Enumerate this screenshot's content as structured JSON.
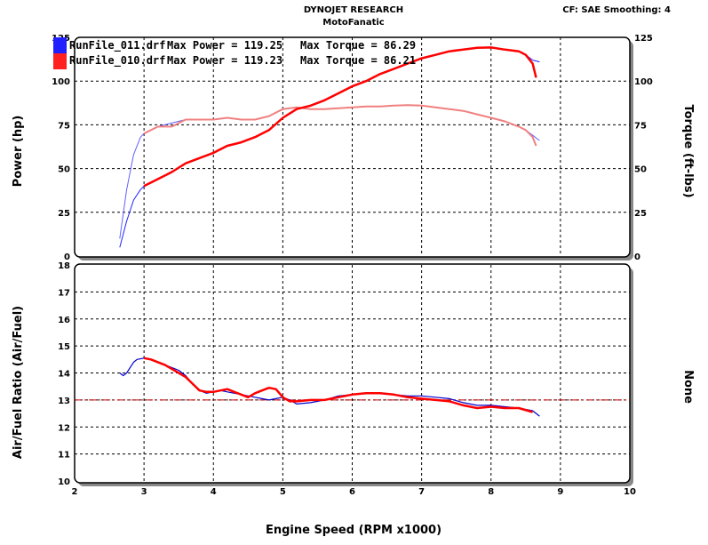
{
  "header": {
    "company": "DYNOJET RESEARCH",
    "shop": "MotoFanatic",
    "settings": "CF: SAE  Smoothing: 4"
  },
  "legend": [
    {
      "file": "RunFile_011.drf",
      "power_text": "Max Power = 119.25",
      "torque_text": "Max Torque = 86.29",
      "color": "#0000ff"
    },
    {
      "file": "RunFile_010.drf",
      "power_text": "Max Power = 119.23",
      "torque_text": "Max Torque = 86.21",
      "color": "#ff0000"
    }
  ],
  "chart_data": [
    {
      "type": "line",
      "name": "power-torque",
      "ylabel": "Power (hp)",
      "y2label": "Torque (ft-lbs)",
      "xlim": [
        2,
        10
      ],
      "ylim": [
        0,
        125
      ],
      "y2lim": [
        0,
        125
      ],
      "yticks": [
        0,
        25,
        50,
        75,
        100,
        125
      ],
      "y2ticks": [
        0,
        25,
        50,
        75,
        100,
        125
      ],
      "grid": true,
      "legend_position": "top-left",
      "series": [
        {
          "name": "RunFile_011.drf Power",
          "color": "#2020ff",
          "axis": "left",
          "x": [
            2.65,
            2.75,
            2.85,
            2.95,
            3.0,
            3.2,
            3.4,
            3.6,
            3.8,
            4.0,
            4.2,
            4.4,
            4.6,
            4.8,
            5.0,
            5.2,
            5.4,
            5.6,
            5.8,
            6.0,
            6.2,
            6.4,
            6.6,
            6.8,
            7.0,
            7.2,
            7.4,
            7.6,
            7.8,
            8.0,
            8.2,
            8.4,
            8.5,
            8.6,
            8.7
          ],
          "y": [
            5,
            20,
            32,
            38,
            40,
            44,
            48,
            53,
            56,
            59,
            63,
            65,
            68,
            72,
            79,
            84,
            86,
            89,
            93,
            97,
            100,
            104,
            107,
            110,
            113,
            115,
            117,
            118,
            119,
            119.25,
            118,
            117,
            115,
            112,
            111
          ]
        },
        {
          "name": "RunFile_010.drf Power",
          "color": "#ff0000",
          "axis": "left",
          "x": [
            3.0,
            3.2,
            3.4,
            3.6,
            3.8,
            4.0,
            4.2,
            4.4,
            4.6,
            4.8,
            5.0,
            5.2,
            5.4,
            5.6,
            5.8,
            6.0,
            6.2,
            6.4,
            6.6,
            6.8,
            7.0,
            7.2,
            7.4,
            7.6,
            7.8,
            8.0,
            8.2,
            8.4,
            8.5,
            8.6,
            8.65
          ],
          "y": [
            40,
            44,
            48,
            53,
            56,
            59,
            63,
            65,
            68,
            72,
            79,
            84,
            86,
            89,
            93,
            97,
            100,
            104,
            107,
            110,
            113,
            115,
            117,
            118,
            119,
            119.23,
            118,
            117,
            115,
            110,
            102
          ]
        },
        {
          "name": "RunFile_011.drf Torque",
          "color": "#6060ff",
          "axis": "right",
          "x": [
            2.65,
            2.75,
            2.85,
            2.95,
            3.0,
            3.2,
            3.4,
            3.6,
            3.8,
            4.0,
            4.2,
            4.4,
            4.6,
            4.8,
            5.0,
            5.2,
            5.4,
            5.6,
            5.8,
            6.0,
            6.2,
            6.4,
            6.6,
            6.8,
            7.0,
            7.2,
            7.4,
            7.6,
            7.8,
            8.0,
            8.2,
            8.4,
            8.5,
            8.6,
            8.7
          ],
          "y": [
            10,
            38,
            58,
            68,
            70,
            74,
            76,
            78,
            78,
            78,
            79,
            78,
            78,
            80,
            84,
            85,
            84,
            84,
            84.5,
            85,
            85.5,
            85.5,
            86,
            86.29,
            86,
            85,
            84,
            83,
            81,
            79,
            77,
            74,
            72,
            69,
            66
          ]
        },
        {
          "name": "RunFile_010.drf Torque",
          "color": "#f08080",
          "axis": "right",
          "x": [
            3.0,
            3.2,
            3.4,
            3.6,
            3.8,
            4.0,
            4.2,
            4.4,
            4.6,
            4.8,
            5.0,
            5.2,
            5.4,
            5.6,
            5.8,
            6.0,
            6.2,
            6.4,
            6.6,
            6.8,
            7.0,
            7.2,
            7.4,
            7.6,
            7.8,
            8.0,
            8.2,
            8.4,
            8.5,
            8.6,
            8.65
          ],
          "y": [
            70,
            74,
            74,
            78,
            78,
            78,
            79,
            78,
            78,
            80,
            84,
            85,
            84,
            84,
            84.5,
            85,
            85.5,
            85.5,
            86,
            86.21,
            86,
            85,
            84,
            83,
            81,
            79,
            77,
            74,
            72,
            68,
            63
          ]
        }
      ]
    },
    {
      "type": "line",
      "name": "air-fuel",
      "ylabel": "Air/Fuel Ratio (Air/Fuel)",
      "y2label": "None",
      "xlabel": "Engine Speed (RPM x1000)",
      "xlim": [
        2,
        10
      ],
      "ylim": [
        10,
        18
      ],
      "xticks": [
        2,
        3,
        4,
        5,
        6,
        7,
        8,
        9,
        10
      ],
      "yticks": [
        10,
        11,
        12,
        13,
        14,
        15,
        16,
        17,
        18
      ],
      "grid": true,
      "reference_line": {
        "y": 13,
        "color": "#cc0000"
      },
      "series": [
        {
          "name": "RunFile_011.drf AFR",
          "color": "#0000cc",
          "x": [
            2.65,
            2.7,
            2.75,
            2.8,
            2.85,
            2.9,
            3.0,
            3.1,
            3.2,
            3.3,
            3.4,
            3.5,
            3.6,
            3.7,
            3.8,
            3.9,
            4.0,
            4.1,
            4.2,
            4.3,
            4.4,
            4.5,
            4.6,
            4.7,
            4.8,
            4.9,
            5.0,
            5.1,
            5.2,
            5.4,
            5.6,
            5.8,
            6.0,
            6.2,
            6.4,
            6.6,
            6.8,
            7.0,
            7.2,
            7.4,
            7.6,
            7.8,
            8.0,
            8.2,
            8.4,
            8.6,
            8.7
          ],
          "y": [
            14.0,
            13.9,
            14.0,
            14.2,
            14.4,
            14.5,
            14.55,
            14.5,
            14.4,
            14.3,
            14.2,
            14.1,
            13.9,
            13.6,
            13.35,
            13.25,
            13.3,
            13.35,
            13.3,
            13.25,
            13.2,
            13.15,
            13.1,
            13.05,
            13.0,
            13.05,
            13.1,
            13.0,
            12.85,
            12.9,
            13.0,
            13.15,
            13.2,
            13.25,
            13.25,
            13.2,
            13.15,
            13.15,
            13.1,
            13.05,
            12.9,
            12.8,
            12.8,
            12.75,
            12.7,
            12.6,
            12.4
          ]
        },
        {
          "name": "RunFile_010.drf AFR",
          "color": "#ff0000",
          "x": [
            3.0,
            3.1,
            3.2,
            3.3,
            3.4,
            3.5,
            3.6,
            3.7,
            3.8,
            3.9,
            4.0,
            4.1,
            4.2,
            4.3,
            4.4,
            4.5,
            4.6,
            4.7,
            4.8,
            4.9,
            5.0,
            5.1,
            5.2,
            5.4,
            5.6,
            5.8,
            6.0,
            6.2,
            6.4,
            6.6,
            6.8,
            7.0,
            7.2,
            7.4,
            7.6,
            7.8,
            8.0,
            8.2,
            8.4,
            8.6
          ],
          "y": [
            14.55,
            14.5,
            14.4,
            14.3,
            14.15,
            14.0,
            13.85,
            13.6,
            13.35,
            13.3,
            13.3,
            13.35,
            13.4,
            13.3,
            13.2,
            13.1,
            13.25,
            13.35,
            13.45,
            13.4,
            13.1,
            12.95,
            12.95,
            13.0,
            13.0,
            13.1,
            13.2,
            13.25,
            13.25,
            13.2,
            13.1,
            13.05,
            13.0,
            12.95,
            12.8,
            12.7,
            12.75,
            12.7,
            12.7,
            12.55
          ]
        }
      ]
    }
  ]
}
